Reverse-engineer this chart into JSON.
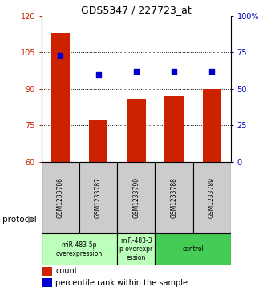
{
  "title": "GDS5347 / 227723_at",
  "samples": [
    "GSM1233786",
    "GSM1233787",
    "GSM1233790",
    "GSM1233788",
    "GSM1233789"
  ],
  "counts": [
    113,
    77,
    86,
    87,
    90
  ],
  "percentile_ranks": [
    73,
    60,
    62,
    62,
    62
  ],
  "ylim_left": [
    60,
    120
  ],
  "ylim_right": [
    0,
    100
  ],
  "yticks_left": [
    60,
    75,
    90,
    105,
    120
  ],
  "yticks_right": [
    0,
    25,
    50,
    75,
    100
  ],
  "ytick_labels_left": [
    "60",
    "75",
    "90",
    "105",
    "120"
  ],
  "ytick_labels_right": [
    "0",
    "25",
    "50",
    "75",
    "100%"
  ],
  "bar_color": "#cc2200",
  "dot_color": "#0000cc",
  "protocol_label": "protocol",
  "legend_count_label": "count",
  "legend_percentile_label": "percentile rank within the sample",
  "sample_box_color": "#cccccc",
  "protocol_groups": [
    {
      "start": 0,
      "end": 2,
      "label": "miR-483-5p\noverexpression",
      "color": "#bbffbb"
    },
    {
      "start": 2,
      "end": 3,
      "label": "miR-483-3\np overexpr\nession",
      "color": "#bbffbb"
    },
    {
      "start": 3,
      "end": 5,
      "label": "control",
      "color": "#44cc55"
    }
  ],
  "bg_color": "#ffffff"
}
